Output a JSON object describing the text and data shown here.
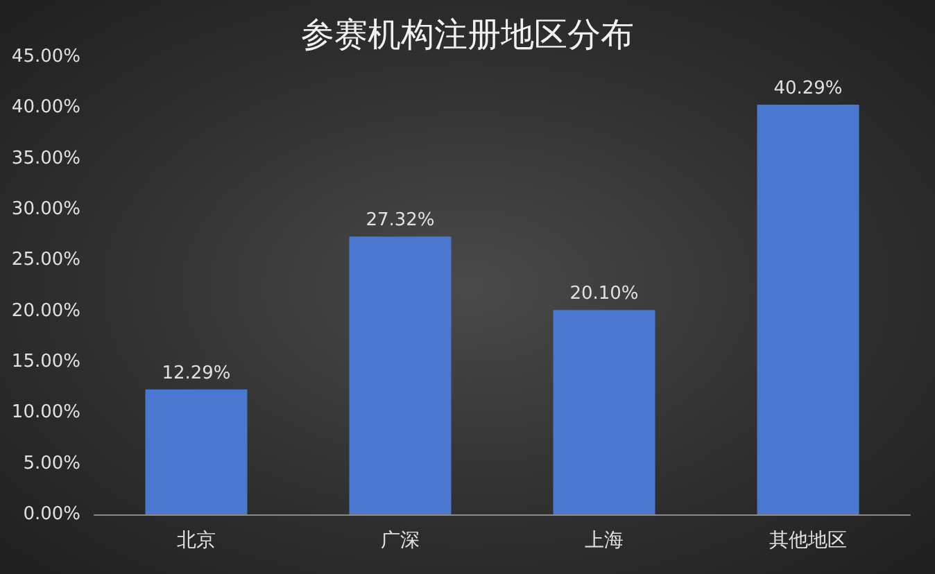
{
  "chart_data": {
    "type": "bar",
    "title": "参赛机构注册地区分布",
    "categories": [
      "北京",
      "广深",
      "上海",
      "其他地区"
    ],
    "values": [
      12.29,
      27.32,
      20.1,
      40.29
    ],
    "value_labels": [
      "12.29%",
      "27.32%",
      "20.10%",
      "40.29%"
    ],
    "color": "#4a78d0",
    "ylim": [
      0,
      45
    ],
    "yticks": [
      {
        "value": 0,
        "label": "0.00%"
      },
      {
        "value": 5,
        "label": "5.00%"
      },
      {
        "value": 10,
        "label": "10.00%"
      },
      {
        "value": 15,
        "label": "15.00%"
      },
      {
        "value": 20,
        "label": "20.00%"
      },
      {
        "value": 25,
        "label": "25.00%"
      },
      {
        "value": 30,
        "label": "30.00%"
      },
      {
        "value": 35,
        "label": "35.00%"
      },
      {
        "value": 40,
        "label": "40.00%"
      },
      {
        "value": 45,
        "label": "45.00%"
      }
    ],
    "grid": false
  }
}
